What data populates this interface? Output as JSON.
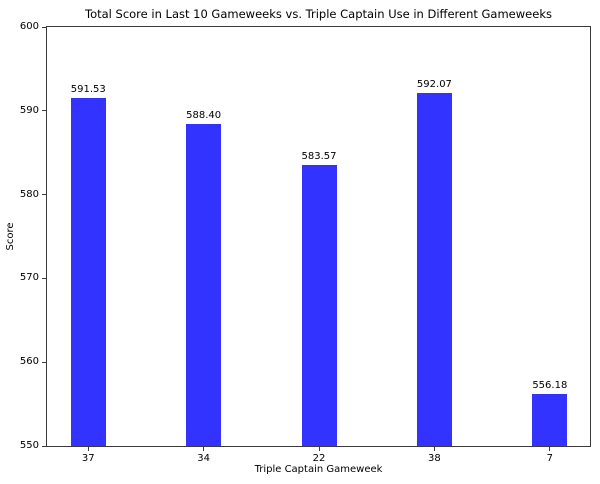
{
  "chart_data": {
    "type": "bar",
    "title": "Total Score in Last 10 Gameweeks vs. Triple Captain Use in Different Gameweeks",
    "xlabel": "Triple Captain Gameweek",
    "ylabel": "Score",
    "categories": [
      "37",
      "34",
      "22",
      "38",
      "7"
    ],
    "values": [
      591.53,
      588.4,
      583.57,
      592.07,
      556.18
    ],
    "value_labels": [
      "591.53",
      "588.40",
      "583.57",
      "592.07",
      "556.18"
    ],
    "ylim": [
      550,
      600
    ],
    "yticks": [
      550,
      560,
      570,
      580,
      590,
      600
    ],
    "bar_color": "#3333ff",
    "axis_color": "#3a3a3a",
    "text_color": "#000000",
    "grid": false,
    "legend": null
  }
}
